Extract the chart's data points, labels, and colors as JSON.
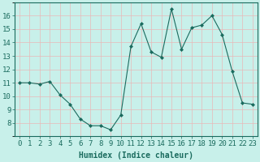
{
  "x": [
    0,
    1,
    2,
    3,
    4,
    5,
    6,
    7,
    8,
    9,
    10,
    11,
    12,
    13,
    14,
    15,
    16,
    17,
    18,
    19,
    20,
    21,
    22,
    23
  ],
  "y": [
    11,
    11,
    10.9,
    11.1,
    10.1,
    9.4,
    8.3,
    7.8,
    7.8,
    7.5,
    8.6,
    13.7,
    15.4,
    13.3,
    12.9,
    16.5,
    13.5,
    15.1,
    15.3,
    16.0,
    14.6,
    11.85,
    9.5,
    9.4
  ],
  "line_color": "#1a6b5e",
  "marker": "D",
  "marker_size": 2,
  "bg_color": "#c8f0ea",
  "grid_color": "#e8b8b8",
  "xlabel": "Humidex (Indice chaleur)",
  "xlim": [
    -0.5,
    23.5
  ],
  "ylim": [
    7,
    17
  ],
  "yticks": [
    8,
    9,
    10,
    11,
    12,
    13,
    14,
    15,
    16
  ],
  "xticks": [
    0,
    1,
    2,
    3,
    4,
    5,
    6,
    7,
    8,
    9,
    10,
    11,
    12,
    13,
    14,
    15,
    16,
    17,
    18,
    19,
    20,
    21,
    22,
    23
  ],
  "label_fontsize": 7,
  "tick_fontsize": 6.5
}
